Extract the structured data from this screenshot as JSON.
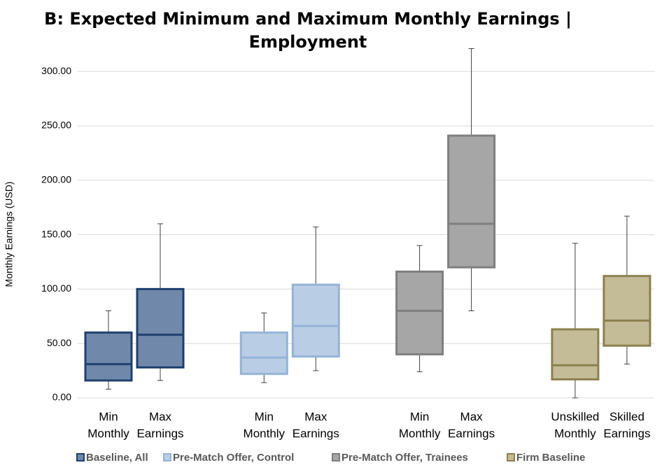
{
  "chart_data": {
    "type": "box",
    "title": [
      "B: Expected Minimum and Maximum Monthly Earnings |",
      "Employment"
    ],
    "y_label": "Monthly Earnings (USD)",
    "ylim": [
      0,
      320
    ],
    "yticks": [
      {
        "value": 0,
        "label": "0.00"
      },
      {
        "value": 50,
        "label": "50.00"
      },
      {
        "value": 100,
        "label": "100.00"
      },
      {
        "value": 150,
        "label": "150.00"
      },
      {
        "value": 200,
        "label": "200.00"
      },
      {
        "value": 250,
        "label": "250.00"
      },
      {
        "value": 300,
        "label": "300.00"
      }
    ],
    "grid": true,
    "legend": "bottom",
    "series": [
      {
        "name": "Baseline, All",
        "color": "#1f3f6e",
        "fill": "#7089ab",
        "categories": [
          [
            "Min",
            "Monthly"
          ],
          [
            "Max",
            "Earnings"
          ]
        ],
        "boxes": [
          {
            "min": 8,
            "q1": 16,
            "median": 31,
            "q3": 60,
            "max": 80
          },
          {
            "min": 16,
            "q1": 28,
            "median": 58,
            "q3": 100,
            "max": 160
          }
        ]
      },
      {
        "name": "Pre-Match Offer, Control",
        "color": "#95b3d7",
        "fill": "#b9cde5",
        "categories": [
          [
            "Min",
            "Monthly"
          ],
          [
            "Max",
            "Earnings"
          ]
        ],
        "boxes": [
          {
            "min": 14,
            "q1": 22,
            "median": 37,
            "q3": 60,
            "max": 78
          },
          {
            "min": 25,
            "q1": 38,
            "median": 66,
            "q3": 104,
            "max": 157
          }
        ]
      },
      {
        "name": "Pre-Match Offer, Trainees",
        "color": "#7f7f7f",
        "fill": "#a6a6a6",
        "categories": [
          [
            "Min",
            "Monthly"
          ],
          [
            "Max",
            "Earnings"
          ]
        ],
        "boxes": [
          {
            "min": 24,
            "q1": 40,
            "median": 80,
            "q3": 116,
            "max": 140
          },
          {
            "min": 80,
            "q1": 120,
            "median": 160,
            "q3": 241,
            "max": 321
          }
        ]
      },
      {
        "name": "Firm Baseline",
        "color": "#8c8050",
        "fill": "#c4bc96",
        "categories": [
          [
            "Unskilled",
            "Monthly"
          ],
          [
            "Skilled",
            "Earnings"
          ]
        ],
        "boxes": [
          {
            "min": 0,
            "q1": 17,
            "median": 30,
            "q3": 63,
            "max": 142
          },
          {
            "min": 31,
            "q1": 48,
            "median": 71,
            "q3": 112,
            "max": 167
          }
        ]
      }
    ]
  }
}
